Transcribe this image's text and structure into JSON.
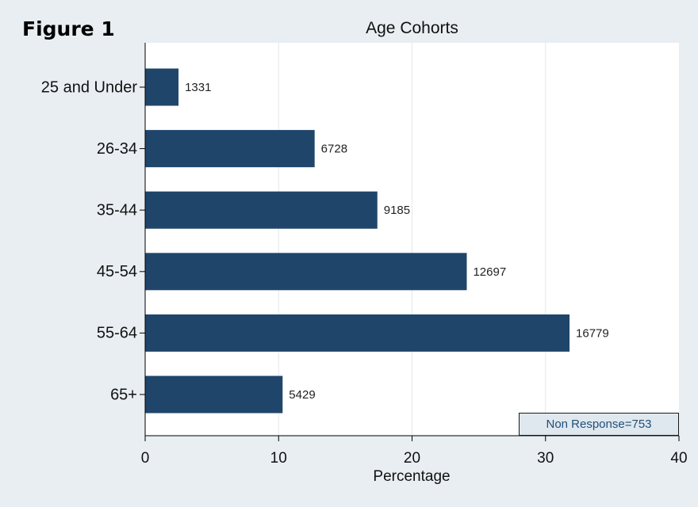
{
  "figure_label": "Figure 1",
  "note": "Non Response=753",
  "colors": {
    "bar": "#1f466a",
    "background": "#e8eef2",
    "plot": "#ffffff",
    "grid": "#e3e8ec"
  },
  "chart_data": {
    "type": "bar",
    "orientation": "horizontal",
    "title": "Age Cohorts",
    "xlabel": "Percentage",
    "ylabel": "",
    "xlim": [
      0,
      40
    ],
    "xticks": [
      0,
      10,
      20,
      30,
      40
    ],
    "grid": true,
    "categories": [
      "25 and Under",
      "26-34",
      "35-44",
      "45-54",
      "55-64",
      "65+"
    ],
    "values": [
      2.5,
      12.7,
      17.4,
      24.1,
      31.8,
      10.3
    ],
    "data_labels": [
      "1331",
      "6728",
      "9185",
      "12697",
      "16779",
      "5429"
    ]
  }
}
